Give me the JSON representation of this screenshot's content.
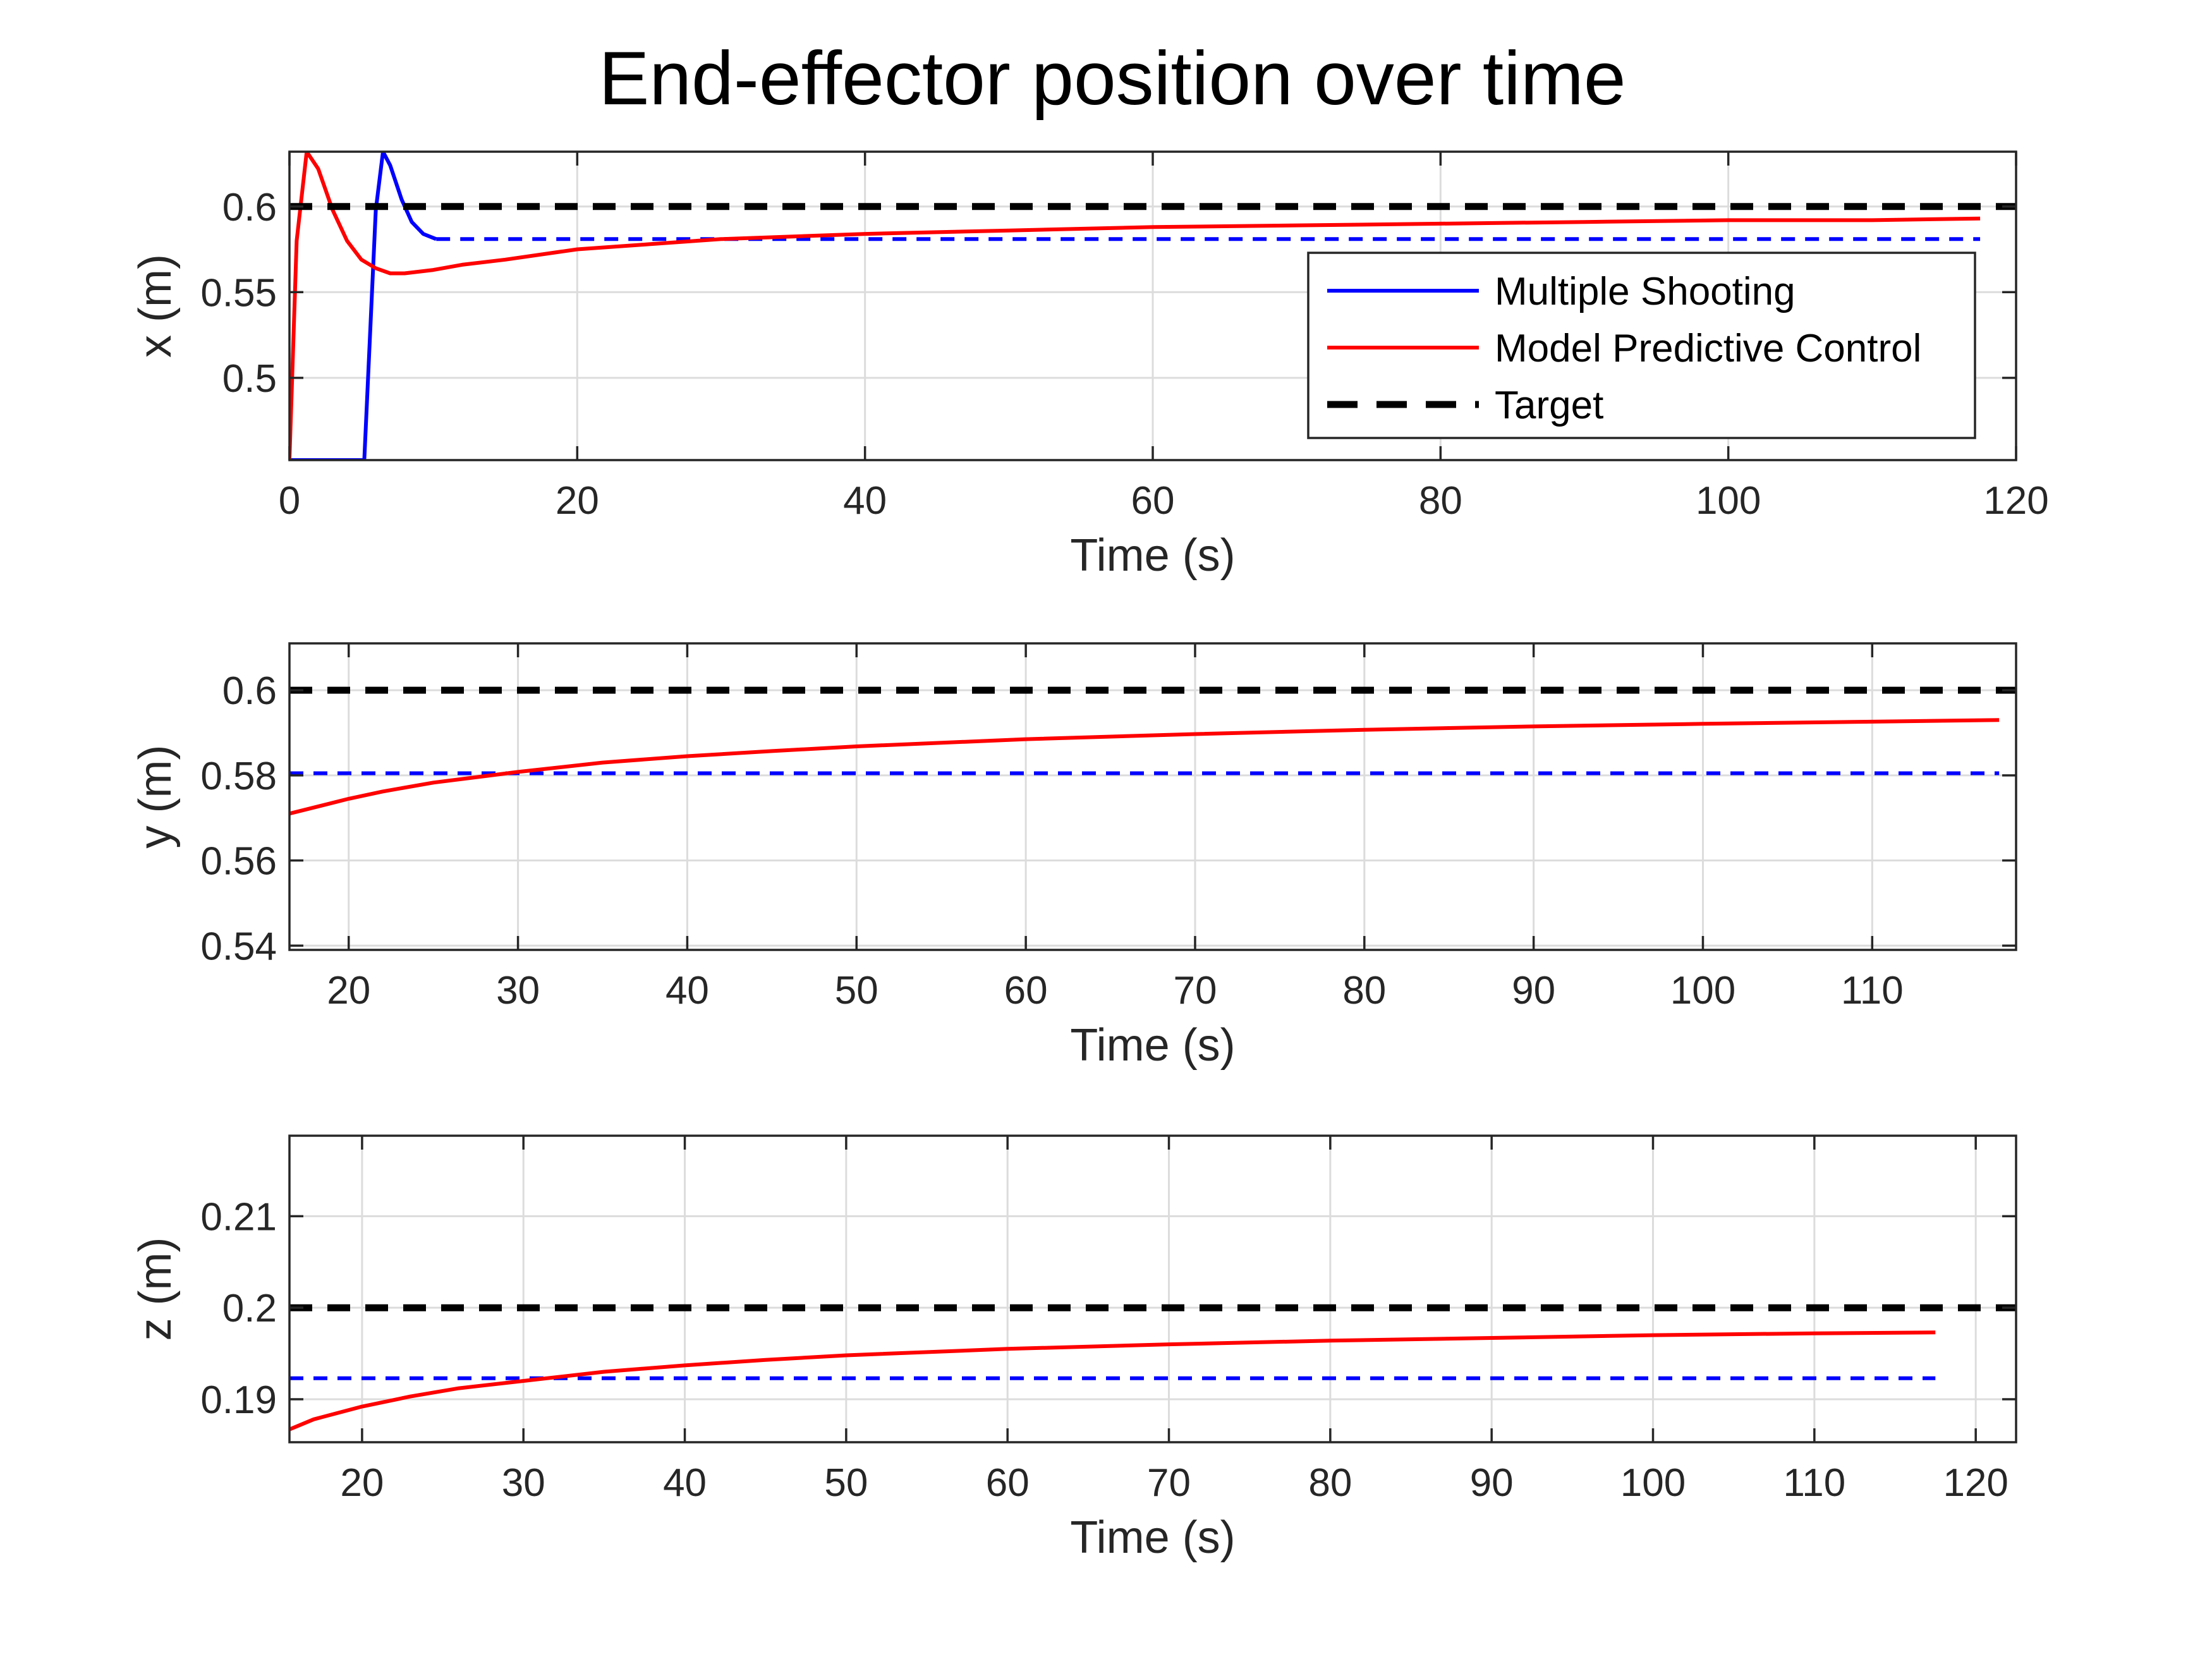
{
  "title": "End-effector position over time",
  "legend": {
    "placement": "right-middle of top panel",
    "entries": [
      {
        "label": "Multiple Shooting",
        "color": "#0000ff",
        "style": "solid"
      },
      {
        "label": "Model Predictive Control",
        "color": "#ff0000",
        "style": "solid"
      },
      {
        "label": "Target",
        "color": "#000000",
        "style": "dashed"
      }
    ]
  },
  "chart_data": [
    {
      "type": "line",
      "name": "x-panel",
      "xlabel": "Time (s)",
      "ylabel": "x (m)",
      "xlim": [
        0,
        120
      ],
      "ylim": [
        0.452,
        0.632
      ],
      "xticks": [
        0,
        20,
        40,
        60,
        80,
        100,
        120
      ],
      "xtick_labels": [
        "0",
        "20",
        "40",
        "60",
        "80",
        "100",
        "120"
      ],
      "yticks": [
        0.5,
        0.55,
        0.6
      ],
      "ytick_labels": [
        "0.5",
        "0.55",
        "0.6"
      ],
      "grid": true,
      "series": [
        {
          "name": "Multiple Shooting",
          "color": "#0000ff",
          "style": "solid",
          "x": [
            0,
            5.2,
            6.0,
            6.5,
            7.0,
            7.8,
            8.5,
            9.3,
            10.2
          ],
          "y": [
            0.452,
            0.452,
            0.598,
            0.632,
            0.624,
            0.604,
            0.591,
            0.584,
            0.581
          ]
        },
        {
          "name": "Multiple Shooting (final)",
          "color": "#0000ff",
          "style": "dashed",
          "x": [
            10.2,
            117.5
          ],
          "y": [
            0.581,
            0.581
          ]
        },
        {
          "name": "Model Predictive Control",
          "color": "#ff0000",
          "style": "solid",
          "x": [
            0,
            0.5,
            1.2,
            2.0,
            3.0,
            4.0,
            5.0,
            6.0,
            7.0,
            8.0,
            10,
            12,
            15,
            20,
            25,
            30,
            40,
            50,
            60,
            70,
            80,
            90,
            100,
            110,
            117.5
          ],
          "y": [
            0.452,
            0.58,
            0.632,
            0.622,
            0.598,
            0.58,
            0.569,
            0.564,
            0.561,
            0.561,
            0.563,
            0.566,
            0.569,
            0.575,
            0.578,
            0.581,
            0.584,
            0.586,
            0.588,
            0.589,
            0.59,
            0.591,
            0.592,
            0.592,
            0.593
          ]
        },
        {
          "name": "Target",
          "color": "#000000",
          "style": "dashed",
          "x": [
            0,
            120
          ],
          "y": [
            0.6,
            0.6
          ]
        }
      ]
    },
    {
      "type": "line",
      "name": "y-panel",
      "xlabel": "Time (s)",
      "ylabel": "y (m)",
      "xlim": [
        16.5,
        118.5
      ],
      "ylim": [
        0.539,
        0.611
      ],
      "xticks": [
        20,
        30,
        40,
        50,
        60,
        70,
        80,
        90,
        100,
        110
      ],
      "xtick_labels": [
        "20",
        "30",
        "40",
        "50",
        "60",
        "70",
        "80",
        "90",
        "100",
        "110"
      ],
      "yticks": [
        0.54,
        0.56,
        0.58,
        0.6
      ],
      "ytick_labels": [
        "0.54",
        "0.56",
        "0.58",
        "0.6"
      ],
      "grid": true,
      "series": [
        {
          "name": "Multiple Shooting (final)",
          "color": "#0000ff",
          "style": "dashed",
          "x": [
            16.5,
            117.5
          ],
          "y": [
            0.5805,
            0.5805
          ]
        },
        {
          "name": "Model Predictive Control",
          "color": "#ff0000",
          "style": "solid",
          "x": [
            16.5,
            18,
            20,
            22,
            25,
            30,
            35,
            40,
            45,
            50,
            60,
            70,
            80,
            90,
            100,
            110,
            117.5
          ],
          "y": [
            0.571,
            0.5725,
            0.5745,
            0.5762,
            0.5783,
            0.5808,
            0.583,
            0.5845,
            0.5857,
            0.5868,
            0.5885,
            0.5897,
            0.5907,
            0.5915,
            0.5921,
            0.5926,
            0.593
          ]
        },
        {
          "name": "Target",
          "color": "#000000",
          "style": "dashed",
          "x": [
            16.5,
            118.5
          ],
          "y": [
            0.6,
            0.6
          ]
        }
      ]
    },
    {
      "type": "line",
      "name": "z-panel",
      "xlabel": "Time (s)",
      "ylabel": "z (m)",
      "xlim": [
        15.5,
        122.5
      ],
      "ylim": [
        0.1853,
        0.2188
      ],
      "xticks": [
        20,
        30,
        40,
        50,
        60,
        70,
        80,
        90,
        100,
        110,
        120
      ],
      "xtick_labels": [
        "20",
        "30",
        "40",
        "50",
        "60",
        "70",
        "80",
        "90",
        "100",
        "110",
        "120"
      ],
      "yticks": [
        0.19,
        0.2,
        0.21
      ],
      "ytick_labels": [
        "0.19",
        "0.2",
        "0.21"
      ],
      "grid": true,
      "series": [
        {
          "name": "Multiple Shooting (final)",
          "color": "#0000ff",
          "style": "dashed",
          "x": [
            15.5,
            117.5
          ],
          "y": [
            0.1923,
            0.1923
          ]
        },
        {
          "name": "Model Predictive Control",
          "color": "#ff0000",
          "style": "solid",
          "x": [
            15.5,
            17,
            20,
            23,
            26,
            30,
            35,
            40,
            45,
            50,
            60,
            70,
            80,
            90,
            100,
            110,
            117.5
          ],
          "y": [
            0.1867,
            0.1878,
            0.1892,
            0.1903,
            0.1912,
            0.192,
            0.193,
            0.1937,
            0.1943,
            0.1948,
            0.1955,
            0.196,
            0.1964,
            0.1967,
            0.197,
            0.1972,
            0.1973
          ]
        },
        {
          "name": "Target",
          "color": "#000000",
          "style": "dashed",
          "x": [
            15.5,
            122.5
          ],
          "y": [
            0.2,
            0.2
          ]
        }
      ]
    }
  ]
}
